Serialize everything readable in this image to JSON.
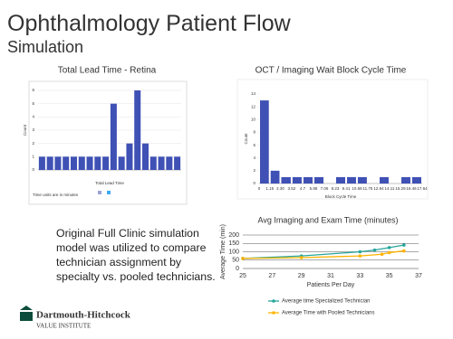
{
  "slide": {
    "title": "Ophthalmology Patient Flow",
    "subtitle": "Simulation",
    "body": "Original Full Clinic simulation model was utilized to compare technician assignment by specialty vs. pooled technicians.",
    "logo": {
      "name": "Dartmouth-Hitchcock",
      "sub": "VALUE INSTITUTE"
    }
  },
  "chart_data": [
    {
      "type": "bar",
      "title": "Total Lead Time - Retina",
      "x_label": "Total Lead Time",
      "y_label": "Count",
      "note": "Time units are in minutes",
      "color": "#3f51b5",
      "categories": [
        null,
        null,
        null,
        null,
        null,
        null,
        null,
        null,
        null,
        null,
        null,
        null,
        null,
        null,
        null,
        null,
        null,
        null
      ],
      "values": [
        1,
        1,
        1,
        1,
        1,
        1,
        1,
        1,
        1,
        5,
        1,
        2,
        6,
        2,
        1,
        1,
        1,
        1
      ],
      "ylim": [
        0,
        6
      ],
      "yticks": [
        0,
        1,
        2,
        3,
        4,
        5,
        6
      ],
      "grid": true
    },
    {
      "type": "histogram",
      "title": "OCT / Imaging Wait Block Cycle Time",
      "x_label": "Block Cycle Time",
      "y_label": "Count",
      "color": "#3f51b5",
      "bins": [
        0,
        1.15,
        2.3,
        3.52,
        4.7,
        5.88,
        7.06,
        8.23,
        9.41,
        10.58,
        11.75,
        12.94,
        14.11,
        15.29,
        16.46,
        17.64
      ],
      "values": [
        13,
        2,
        1,
        1,
        1,
        1,
        0,
        1,
        1,
        1,
        0,
        1,
        0,
        1,
        1
      ],
      "xlim": [
        0,
        17.64
      ],
      "xticks": [
        0,
        {
          "value": 1.15,
          "label": "1.15"
        },
        {
          "value": 2.3,
          "label": "2.30"
        },
        3.52,
        4.7,
        5.88,
        7.06,
        8.23,
        9.41,
        10.58,
        11.75,
        12.94,
        14.11,
        15.29,
        16.46,
        17.64
      ],
      "ylim": [
        0,
        14
      ],
      "yticks": [
        0,
        2,
        4,
        6,
        8,
        10,
        12,
        14
      ],
      "grid": false
    },
    {
      "type": "line",
      "title": "Avg Imaging and Exam Time (minutes)",
      "x_label": "Patients Per Day",
      "y_label": "Average Time (min)",
      "xlim": [
        25,
        37
      ],
      "xticks": [
        25,
        27,
        29,
        31,
        33,
        35,
        37
      ],
      "ylim": [
        0,
        200
      ],
      "yticks": [
        0,
        50,
        100,
        150,
        200
      ],
      "grid": true,
      "legend": "bottom",
      "series": [
        {
          "name": "Average time Specialized Technician",
          "color": "#26a69a",
          "x": [
            25,
            29,
            33,
            34,
            35,
            36
          ],
          "values": [
            60,
            75,
            100,
            110,
            125,
            140
          ]
        },
        {
          "name": "Average Time with Pooled Technicians",
          "color": "#ffb300",
          "x": [
            25,
            29,
            33,
            34.5,
            35,
            36
          ],
          "values": [
            60,
            65,
            75,
            85,
            95,
            105
          ]
        }
      ]
    }
  ]
}
